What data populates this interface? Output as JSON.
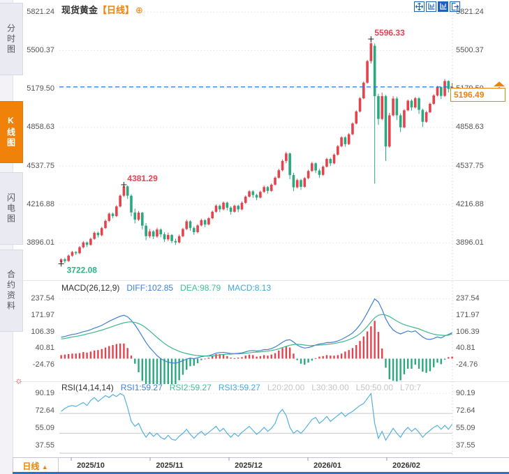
{
  "header": {
    "symbol": "现货黄金",
    "period_tag": "【日线】",
    "add_icon": "⊕",
    "toolbar_icons": [
      "crosshair-icon",
      "kline-window-icon",
      "kline-window-active-icon",
      "exit-icon"
    ]
  },
  "sidebar": {
    "tabs": [
      {
        "label": "分时图",
        "active": false
      },
      {
        "label": "K线图",
        "active": true
      },
      {
        "label": "闪电图",
        "active": false
      },
      {
        "label": "合约资料",
        "active": false
      }
    ]
  },
  "indicators": {
    "macd": {
      "name": "MACD(26,12,9)",
      "diff": "DIFF:102.85",
      "dea": "DEA:98.79",
      "macd": "MACD:8.13"
    },
    "rsi": {
      "name": "RSI(14,14,14)",
      "r1": "RSI1:59.27",
      "r2": "RSI2:59.27",
      "r3": "RSI3:59.27",
      "l20": "L20:20.00",
      "l30": "L30:30.00",
      "l50": "L50:50.00",
      "l70": "L70:7"
    }
  },
  "bottom": {
    "period_label": "日线",
    "arrow": "▲"
  },
  "colors": {
    "up": "#e2434d",
    "down": "#2ba87e",
    "accent_orange": "#f0820a",
    "diff_blue": "#3f7fd6",
    "dea_green": "#3ec092",
    "rsi_cyan": "#55b0e2",
    "dash_blue": "#2176e5",
    "toolbar_blue": "#1b63b8"
  },
  "chart_data": [
    {
      "type": "candlestick",
      "title": "现货黄金【日线】",
      "axis_labels": [
        "5821.24",
        "5500.37",
        "5179.50",
        "4858.63",
        "4537.75",
        "4216.88",
        "3896.01"
      ],
      "x_labels": [
        "2025/10",
        "2025/11",
        "2025/12",
        "2026/01",
        "2026/02"
      ],
      "last_price": "5196.49",
      "annotations": [
        {
          "text": "5596.33",
          "candle": 84,
          "place": "above",
          "color": "#ee4054"
        },
        {
          "text": "4381.29",
          "candle": 17,
          "place": "above",
          "color": "#ee4054"
        },
        {
          "text": "3722.08",
          "candle": 0,
          "place": "below",
          "color": "#2db387"
        }
      ],
      "candles": [
        [
          3735,
          3768,
          3722.08,
          3760
        ],
        [
          3760,
          3772,
          3728,
          3745
        ],
        [
          3745,
          3800,
          3738,
          3790
        ],
        [
          3790,
          3830,
          3780,
          3820
        ],
        [
          3820,
          3828,
          3795,
          3810
        ],
        [
          3810,
          3870,
          3802,
          3860
        ],
        [
          3860,
          3912,
          3850,
          3900
        ],
        [
          3900,
          3908,
          3862,
          3880
        ],
        [
          3880,
          3940,
          3872,
          3930
        ],
        [
          3930,
          3992,
          3922,
          3980
        ],
        [
          3980,
          3990,
          3942,
          3960
        ],
        [
          3960,
          4030,
          3952,
          4020
        ],
        [
          4020,
          4092,
          4012,
          4080
        ],
        [
          4080,
          4150,
          4070,
          4140
        ],
        [
          4140,
          4150,
          4102,
          4120
        ],
        [
          4120,
          4210,
          4112,
          4200
        ],
        [
          4200,
          4300,
          4192,
          4290
        ],
        [
          4290,
          4381.29,
          4280,
          4368
        ],
        [
          4368,
          4375,
          4262,
          4290
        ],
        [
          4290,
          4302,
          4118,
          4150
        ],
        [
          4150,
          4182,
          4058,
          4090
        ],
        [
          4090,
          4162,
          4080,
          4148
        ],
        [
          4148,
          4156,
          4008,
          4040
        ],
        [
          4040,
          4062,
          3918,
          3952
        ],
        [
          3952,
          4012,
          3936,
          3992
        ],
        [
          3992,
          4002,
          3928,
          3950
        ],
        [
          3950,
          4022,
          3940,
          4008
        ],
        [
          4008,
          4018,
          3944,
          3968
        ],
        [
          3968,
          3986,
          3904,
          3926
        ],
        [
          3926,
          3982,
          3912,
          3962
        ],
        [
          3962,
          3970,
          3894,
          3912
        ],
        [
          3912,
          3932,
          3880,
          3900
        ],
        [
          3900,
          3966,
          3892,
          3952
        ],
        [
          3952,
          4022,
          3944,
          4012
        ],
        [
          4012,
          4090,
          4002,
          4076
        ],
        [
          4076,
          4086,
          3998,
          4020
        ],
        [
          4020,
          4034,
          3964,
          3986
        ],
        [
          3986,
          4052,
          3976,
          4042
        ],
        [
          4042,
          4098,
          4034,
          4086
        ],
        [
          4086,
          4094,
          4028,
          4050
        ],
        [
          4050,
          4112,
          4042,
          4102
        ],
        [
          4102,
          4166,
          4094,
          4156
        ],
        [
          4156,
          4216,
          4148,
          4206
        ],
        [
          4206,
          4216,
          4152,
          4176
        ],
        [
          4176,
          4242,
          4168,
          4232
        ],
        [
          4232,
          4240,
          4168,
          4190
        ],
        [
          4190,
          4202,
          4132,
          4156
        ],
        [
          4156,
          4216,
          4148,
          4206
        ],
        [
          4206,
          4214,
          4152,
          4176
        ],
        [
          4176,
          4242,
          4168,
          4230
        ],
        [
          4230,
          4292,
          4222,
          4282
        ],
        [
          4282,
          4336,
          4274,
          4326
        ],
        [
          4326,
          4336,
          4272,
          4296
        ],
        [
          4296,
          4306,
          4252,
          4274
        ],
        [
          4274,
          4332,
          4266,
          4322
        ],
        [
          4322,
          4374,
          4314,
          4362
        ],
        [
          4362,
          4370,
          4308,
          4330
        ],
        [
          4330,
          4392,
          4322,
          4382
        ],
        [
          4382,
          4450,
          4374,
          4440
        ],
        [
          4440,
          4514,
          4432,
          4502
        ],
        [
          4502,
          4592,
          4494,
          4580
        ],
        [
          4580,
          4656,
          4560,
          4642
        ],
        [
          4642,
          4650,
          4428,
          4462
        ],
        [
          4462,
          4482,
          4328,
          4360
        ],
        [
          4360,
          4432,
          4350,
          4420
        ],
        [
          4420,
          4430,
          4338,
          4364
        ],
        [
          4364,
          4446,
          4356,
          4436
        ],
        [
          4436,
          4506,
          4428,
          4496
        ],
        [
          4496,
          4572,
          4488,
          4560
        ],
        [
          4560,
          4568,
          4478,
          4500
        ],
        [
          4500,
          4514,
          4438,
          4464
        ],
        [
          4464,
          4542,
          4456,
          4532
        ],
        [
          4532,
          4606,
          4524,
          4596
        ],
        [
          4596,
          4606,
          4538,
          4560
        ],
        [
          4560,
          4642,
          4552,
          4632
        ],
        [
          4632,
          4712,
          4624,
          4702
        ],
        [
          4702,
          4786,
          4694,
          4776
        ],
        [
          4776,
          4786,
          4698,
          4720
        ],
        [
          4720,
          4812,
          4712,
          4802
        ],
        [
          4802,
          4902,
          4794,
          4892
        ],
        [
          4892,
          5002,
          4884,
          4992
        ],
        [
          4992,
          5112,
          4984,
          5102
        ],
        [
          5102,
          5242,
          5094,
          5232
        ],
        [
          5232,
          5422,
          5224,
          5412
        ],
        [
          5412,
          5596.33,
          5392,
          5560
        ],
        [
          5540,
          5560,
          4390,
          5120
        ],
        [
          5120,
          5140,
          4880,
          4930
        ],
        [
          4930,
          5150,
          4920,
          5120
        ],
        [
          5120,
          5130,
          4580,
          4700
        ],
        [
          4700,
          4980,
          4690,
          4960
        ],
        [
          4960,
          5120,
          4950,
          5100
        ],
        [
          5100,
          5115,
          4920,
          4960
        ],
        [
          4960,
          4975,
          4820,
          4860
        ],
        [
          4860,
          5012,
          4852,
          5002
        ],
        [
          5002,
          5092,
          4994,
          5082
        ],
        [
          5082,
          5094,
          5000,
          5026
        ],
        [
          5026,
          5114,
          5018,
          5102
        ],
        [
          5102,
          5112,
          4972,
          5006
        ],
        [
          5006,
          5016,
          4862,
          4906
        ],
        [
          4906,
          4996,
          4898,
          4986
        ],
        [
          4986,
          5066,
          4978,
          5056
        ],
        [
          5056,
          5136,
          5048,
          5126
        ],
        [
          5126,
          5206,
          5118,
          5196
        ],
        [
          5196,
          5202,
          5096,
          5122
        ],
        [
          5122,
          5262,
          5114,
          5246
        ],
        [
          5246,
          5252,
          5150,
          5180
        ],
        [
          5180,
          5230,
          5150,
          5196.49
        ]
      ]
    },
    {
      "type": "bar",
      "name": "MACD",
      "axis_labels": [
        "237.54",
        "171.97",
        "106.39",
        "40.81",
        "-24.76"
      ],
      "diff": [
        85,
        88,
        92,
        96,
        98,
        102,
        107,
        110,
        115,
        121,
        126,
        132,
        140,
        148,
        155,
        162,
        168,
        172,
        166,
        152,
        134,
        112,
        88,
        64,
        44,
        28,
        12,
        0,
        -8,
        -14,
        -17,
        -18,
        -14,
        -8,
        -2,
        2,
        0,
        3,
        8,
        10,
        12,
        16,
        22,
        24,
        25,
        23,
        20,
        20,
        21,
        23,
        27,
        31,
        32,
        30,
        32,
        36,
        36,
        40,
        46,
        55,
        65,
        73,
        75,
        66,
        54,
        46,
        42,
        44,
        48,
        54,
        58,
        60,
        64,
        64,
        66,
        70,
        76,
        84,
        92,
        102,
        116,
        134,
        156,
        182,
        210,
        237,
        225,
        195,
        158,
        132,
        114,
        104,
        98,
        104,
        110,
        106,
        110,
        98,
        86,
        78,
        76,
        80,
        86,
        82,
        90,
        96,
        102.85
      ],
      "dea": [
        78,
        80,
        83,
        86,
        88,
        91,
        94,
        98,
        101,
        105,
        109,
        113,
        118,
        123,
        128,
        133,
        138,
        142,
        145,
        146,
        144,
        139,
        132,
        122,
        110,
        97,
        84,
        72,
        60,
        50,
        42,
        35,
        29,
        24,
        20,
        17,
        14,
        12,
        11,
        10,
        10,
        11,
        13,
        15,
        17,
        18,
        18,
        19,
        19,
        20,
        21,
        23,
        25,
        26,
        27,
        29,
        30,
        32,
        35,
        39,
        44,
        49,
        53,
        56,
        57,
        56,
        54,
        52,
        52,
        53,
        54,
        55,
        57,
        58,
        60,
        63,
        66,
        70,
        75,
        81,
        89,
        99,
        112,
        128,
        146,
        162,
        172,
        175,
        173,
        167,
        158,
        149,
        141,
        135,
        130,
        126,
        122,
        118,
        112,
        106,
        101,
        97,
        94,
        93,
        92,
        93,
        98.79
      ],
      "hist": [
        14,
        16,
        18,
        20,
        20,
        22,
        26,
        24,
        28,
        32,
        34,
        38,
        44,
        50,
        54,
        58,
        60,
        60,
        42,
        12,
        -20,
        -54,
        -88,
        -116,
        -132,
        -138,
        -144,
        -144,
        -136,
        -128,
        -118,
        -106,
        -86,
        -64,
        -44,
        -30,
        -28,
        -18,
        -6,
        0,
        4,
        10,
        18,
        18,
        16,
        10,
        4,
        2,
        4,
        6,
        12,
        16,
        14,
        8,
        10,
        14,
        12,
        16,
        22,
        32,
        42,
        48,
        44,
        20,
        -6,
        -20,
        -24,
        -16,
        -8,
        2,
        8,
        10,
        14,
        12,
        12,
        14,
        20,
        28,
        34,
        42,
        54,
        70,
        88,
        108,
        128,
        150,
        106,
        40,
        -36,
        -82,
        -88,
        -90,
        -86,
        -62,
        -40,
        -40,
        -24,
        -40,
        -52,
        -56,
        -50,
        -34,
        -16,
        -22,
        -4,
        6,
        8.13
      ]
    },
    {
      "type": "line",
      "name": "RSI",
      "axis_labels": [
        "90.19",
        "72.64",
        "55.09",
        "37.55"
      ],
      "levels": [
        70,
        50,
        30
      ],
      "values": [
        72,
        75,
        77,
        78,
        77,
        79,
        81,
        78,
        83,
        86,
        82,
        85,
        88,
        86,
        89,
        87,
        90,
        88,
        76,
        62,
        57,
        60,
        52,
        46,
        51,
        47,
        50,
        46,
        44,
        48,
        44,
        43,
        47,
        50,
        54,
        49,
        45,
        49,
        52,
        48,
        51,
        54,
        57,
        52,
        55,
        50,
        46,
        50,
        47,
        51,
        54,
        57,
        53,
        49,
        52,
        56,
        52,
        55,
        60,
        70,
        74,
        68,
        56,
        50,
        53,
        50,
        54,
        59,
        64,
        66,
        60,
        63,
        67,
        62,
        65,
        68,
        71,
        67,
        70,
        72,
        75,
        78,
        80,
        85,
        90,
        60,
        45,
        52,
        43,
        49,
        55,
        50,
        46,
        52,
        56,
        52,
        55,
        51,
        46,
        50,
        53,
        56,
        58,
        54,
        58,
        54,
        59.27
      ]
    }
  ]
}
